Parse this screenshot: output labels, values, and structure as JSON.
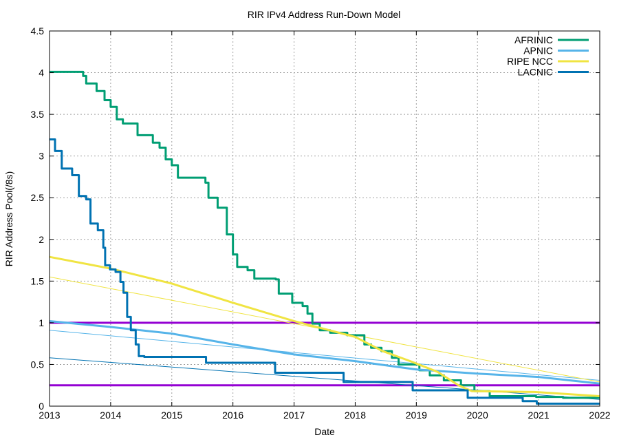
{
  "chart_data": {
    "type": "line",
    "title": "RIR IPv4 Address Run-Down Model",
    "xlabel": "Date",
    "ylabel": "RIR Address Pool(/8s)",
    "xlim": [
      2013,
      2022
    ],
    "ylim": [
      0,
      4.5
    ],
    "x_ticks": [
      "2013",
      "2014",
      "2015",
      "2016",
      "2017",
      "2018",
      "2019",
      "2020",
      "2021",
      "2022"
    ],
    "y_ticks": [
      "0",
      "0.5",
      "1",
      "1.5",
      "2",
      "2.5",
      "3",
      "3.5",
      "4",
      "4.5"
    ],
    "grid": true,
    "legend_position": "top-right",
    "colors": {
      "AFRINIC": "#009e73",
      "APNIC": "#56b4e9",
      "RIPE NCC": "#f0e442",
      "LACNIC": "#0072b2",
      "threshold": "#9400d3",
      "grid": "#a0a0a0"
    },
    "thresholds": [
      1.0,
      0.25
    ],
    "series": [
      {
        "name": "AFRINIC",
        "style": "steps",
        "points": [
          [
            2013,
            4.01
          ],
          [
            2013.55,
            3.96
          ],
          [
            2013.6,
            3.87
          ],
          [
            2013.77,
            3.78
          ],
          [
            2013.9,
            3.67
          ],
          [
            2014.0,
            3.59
          ],
          [
            2014.1,
            3.44
          ],
          [
            2014.2,
            3.39
          ],
          [
            2014.44,
            3.25
          ],
          [
            2014.69,
            3.16
          ],
          [
            2014.8,
            3.1
          ],
          [
            2014.9,
            2.96
          ],
          [
            2015.0,
            2.89
          ],
          [
            2015.1,
            2.74
          ],
          [
            2015.55,
            2.68
          ],
          [
            2015.6,
            2.5
          ],
          [
            2015.75,
            2.38
          ],
          [
            2015.9,
            2.06
          ],
          [
            2016.0,
            1.82
          ],
          [
            2016.07,
            1.67
          ],
          [
            2016.24,
            1.63
          ],
          [
            2016.35,
            1.53
          ],
          [
            2016.7,
            1.52
          ],
          [
            2016.75,
            1.35
          ],
          [
            2016.97,
            1.24
          ],
          [
            2017.14,
            1.2
          ],
          [
            2017.22,
            1.11
          ],
          [
            2017.3,
            0.99
          ],
          [
            2017.42,
            0.91
          ],
          [
            2017.59,
            0.88
          ],
          [
            2017.87,
            0.85
          ],
          [
            2018.15,
            0.74
          ],
          [
            2018.26,
            0.7
          ],
          [
            2018.43,
            0.66
          ],
          [
            2018.6,
            0.58
          ],
          [
            2018.71,
            0.5
          ],
          [
            2019.05,
            0.43
          ],
          [
            2019.22,
            0.37
          ],
          [
            2019.45,
            0.31
          ],
          [
            2019.73,
            0.25
          ],
          [
            2019.95,
            0.18
          ],
          [
            2020.2,
            0.12
          ],
          [
            2020.96,
            0.11
          ],
          [
            2021.4,
            0.1
          ],
          [
            2022,
            0.1
          ]
        ]
      },
      {
        "name": "APNIC",
        "style": "lines",
        "points": [
          [
            2013,
            1.02
          ],
          [
            2014,
            0.95
          ],
          [
            2015,
            0.87
          ],
          [
            2016,
            0.74
          ],
          [
            2017,
            0.62
          ],
          [
            2018,
            0.54
          ],
          [
            2019,
            0.44
          ],
          [
            2020,
            0.39
          ],
          [
            2021,
            0.35
          ],
          [
            2022,
            0.27
          ]
        ]
      },
      {
        "name": "RIPE NCC",
        "style": "lines",
        "points": [
          [
            2013,
            1.79
          ],
          [
            2014,
            1.65
          ],
          [
            2015,
            1.47
          ],
          [
            2016,
            1.24
          ],
          [
            2017,
            1.02
          ],
          [
            2018,
            0.83
          ],
          [
            2018.45,
            0.66
          ],
          [
            2018.9,
            0.54
          ],
          [
            2019.35,
            0.41
          ],
          [
            2019.69,
            0.25
          ],
          [
            2019.91,
            0.18
          ],
          [
            2020.93,
            0.17
          ],
          [
            2022,
            0.12
          ]
        ]
      },
      {
        "name": "LACNIC",
        "style": "steps",
        "points": [
          [
            2013,
            3.2
          ],
          [
            2013.09,
            3.06
          ],
          [
            2013.2,
            2.85
          ],
          [
            2013.37,
            2.77
          ],
          [
            2013.48,
            2.52
          ],
          [
            2013.6,
            2.48
          ],
          [
            2013.67,
            2.19
          ],
          [
            2013.79,
            2.11
          ],
          [
            2013.88,
            1.9
          ],
          [
            2013.91,
            1.69
          ],
          [
            2013.99,
            1.64
          ],
          [
            2014.08,
            1.61
          ],
          [
            2014.16,
            1.49
          ],
          [
            2014.21,
            1.36
          ],
          [
            2014.27,
            1.07
          ],
          [
            2014.33,
            0.91
          ],
          [
            2014.41,
            0.74
          ],
          [
            2014.46,
            0.6
          ],
          [
            2014.55,
            0.59
          ],
          [
            2015.56,
            0.52
          ],
          [
            2016.69,
            0.4
          ],
          [
            2017.81,
            0.29
          ],
          [
            2018.94,
            0.19
          ],
          [
            2019.84,
            0.1
          ],
          [
            2020.74,
            0.06
          ],
          [
            2020.97,
            0.03
          ],
          [
            2022,
            0.03
          ]
        ]
      }
    ],
    "trend_lines": [
      {
        "color": "APNIC",
        "points": [
          [
            2013,
            0.91
          ],
          [
            2022,
            0.31
          ]
        ]
      },
      {
        "color": "RIPE NCC",
        "points": [
          [
            2013,
            1.55
          ],
          [
            2022,
            0.29
          ]
        ]
      },
      {
        "color": "LACNIC",
        "points": [
          [
            2013,
            0.58
          ],
          [
            2022,
            0.08
          ]
        ]
      }
    ]
  }
}
